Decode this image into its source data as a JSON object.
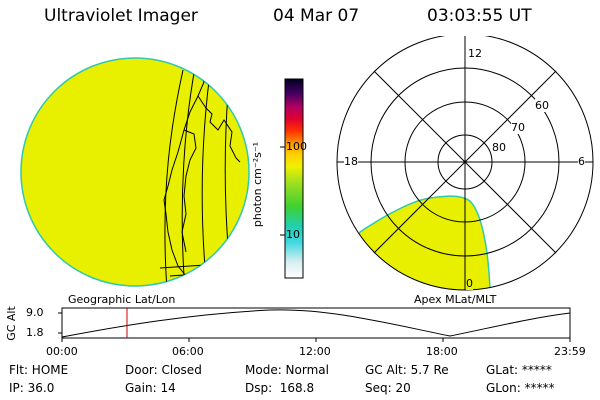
{
  "header": {
    "instrument": "Ultraviolet Imager",
    "date": "04 Mar 07",
    "time": "03:03:55 UT"
  },
  "colorbar": {
    "unit_label": "photon cm⁻²s⁻¹",
    "tick_100": "100",
    "tick_10": "10"
  },
  "left_map": {
    "caption": "Geographic Lat/Lon",
    "fill_color": "#e8f000"
  },
  "polar_plot": {
    "caption": "Apex MLat/MLT",
    "mlt_top": "12",
    "mlt_left": "18",
    "mlt_right": "6",
    "mlt_bottom": "0",
    "lat_60": "60",
    "lat_70": "70",
    "lat_80": "80",
    "fill_color": "#e8f000"
  },
  "altitude_strip": {
    "ylabel": "GC Alt",
    "ytick_top": "9.0",
    "ytick_bottom": "1.8",
    "xticks": [
      "00:00",
      "06:00",
      "12:00",
      "18:00",
      "23:59"
    ],
    "current_time_marker_hours": 3.07,
    "current_time_marker_color": "#cc0000"
  },
  "status": {
    "filter": "Flt: HOME",
    "door": "Door: Closed",
    "mode": "Mode: Normal",
    "gc_alt": "GC Alt: 5.7 Re",
    "glat": "GLat: *****",
    "ip": "IP: 36.0",
    "gain": "Gain: 14",
    "dsp": "Dsp:  168.8",
    "seq": "Seq: 20",
    "glon": "GLon: *****"
  }
}
